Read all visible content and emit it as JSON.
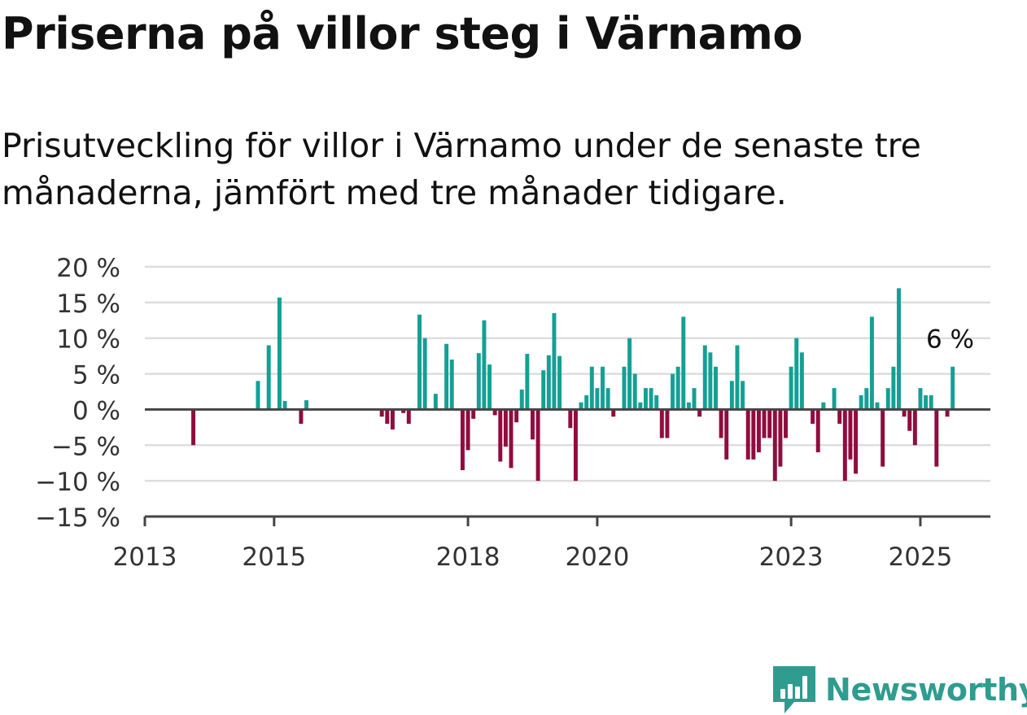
{
  "title": "Priserna på villor steg i Värnamo",
  "subtitle": "Prisutveckling för villor i Värnamo under de senaste tre månaderna, jämfört med tre månader tidigare.",
  "brand": {
    "name": "Newsworthy",
    "icon": "chart-speech-bubble-icon"
  },
  "colors": {
    "positive": "#14a094",
    "negative": "#900c3f",
    "grid": "#dddddd",
    "axis": "#444444"
  },
  "chart_data": {
    "type": "bar",
    "value_unit": "%",
    "ylim": [
      -15,
      20
    ],
    "yticks": [
      20,
      15,
      10,
      5,
      0,
      -5,
      -10,
      -15
    ],
    "ytick_labels": [
      "20 %",
      "15 %",
      "10 %",
      "5 %",
      "0 %",
      "−5 %",
      "−10 %",
      "−15 %"
    ],
    "xlim": [
      "2013-01",
      "2026-02"
    ],
    "xticks": [
      "2013-01",
      "2015-01",
      "2018-01",
      "2020-01",
      "2023-01",
      "2025-01"
    ],
    "xtick_labels": [
      "2013",
      "2015",
      "2018",
      "2020",
      "2023",
      "2025"
    ],
    "grid": true,
    "last_value_label": "6 %",
    "points": [
      {
        "x": "2013-10",
        "y": -5
      },
      {
        "x": "2014-10",
        "y": 4
      },
      {
        "x": "2014-12",
        "y": 9
      },
      {
        "x": "2015-02",
        "y": 15.7
      },
      {
        "x": "2015-03",
        "y": 1.2
      },
      {
        "x": "2015-06",
        "y": -2
      },
      {
        "x": "2015-07",
        "y": 1.3
      },
      {
        "x": "2016-09",
        "y": -1
      },
      {
        "x": "2016-10",
        "y": -2
      },
      {
        "x": "2016-11",
        "y": -2.8
      },
      {
        "x": "2017-01",
        "y": -0.5
      },
      {
        "x": "2017-02",
        "y": -2
      },
      {
        "x": "2017-04",
        "y": 13.3
      },
      {
        "x": "2017-05",
        "y": 10
      },
      {
        "x": "2017-07",
        "y": 2.2
      },
      {
        "x": "2017-09",
        "y": 9.2
      },
      {
        "x": "2017-10",
        "y": 7
      },
      {
        "x": "2017-12",
        "y": -8.5
      },
      {
        "x": "2018-01",
        "y": -5.7
      },
      {
        "x": "2018-02",
        "y": -1.3
      },
      {
        "x": "2018-03",
        "y": 7.9
      },
      {
        "x": "2018-04",
        "y": 12.5
      },
      {
        "x": "2018-05",
        "y": 6.3
      },
      {
        "x": "2018-06",
        "y": -0.8
      },
      {
        "x": "2018-07",
        "y": -7.3
      },
      {
        "x": "2018-08",
        "y": -5.2
      },
      {
        "x": "2018-09",
        "y": -8.2
      },
      {
        "x": "2018-10",
        "y": -1.8
      },
      {
        "x": "2018-11",
        "y": 2.8
      },
      {
        "x": "2018-12",
        "y": 7.8
      },
      {
        "x": "2019-01",
        "y": -4.2
      },
      {
        "x": "2019-02",
        "y": -10
      },
      {
        "x": "2019-03",
        "y": 5.5
      },
      {
        "x": "2019-04",
        "y": 7.6
      },
      {
        "x": "2019-05",
        "y": 13.5
      },
      {
        "x": "2019-06",
        "y": 7.5
      },
      {
        "x": "2019-08",
        "y": -2.6
      },
      {
        "x": "2019-09",
        "y": -10
      },
      {
        "x": "2019-10",
        "y": 1
      },
      {
        "x": "2019-11",
        "y": 2
      },
      {
        "x": "2019-12",
        "y": 6
      },
      {
        "x": "2020-01",
        "y": 3
      },
      {
        "x": "2020-02",
        "y": 6
      },
      {
        "x": "2020-03",
        "y": 3
      },
      {
        "x": "2020-04",
        "y": -1
      },
      {
        "x": "2020-06",
        "y": 6
      },
      {
        "x": "2020-07",
        "y": 10
      },
      {
        "x": "2020-08",
        "y": 5
      },
      {
        "x": "2020-09",
        "y": 1
      },
      {
        "x": "2020-10",
        "y": 3
      },
      {
        "x": "2020-11",
        "y": 3
      },
      {
        "x": "2020-12",
        "y": 2
      },
      {
        "x": "2021-01",
        "y": -4
      },
      {
        "x": "2021-02",
        "y": -4
      },
      {
        "x": "2021-03",
        "y": 5
      },
      {
        "x": "2021-04",
        "y": 6
      },
      {
        "x": "2021-05",
        "y": 13
      },
      {
        "x": "2021-06",
        "y": 1
      },
      {
        "x": "2021-07",
        "y": 3
      },
      {
        "x": "2021-08",
        "y": -1
      },
      {
        "x": "2021-09",
        "y": 9
      },
      {
        "x": "2021-10",
        "y": 8
      },
      {
        "x": "2021-11",
        "y": 6
      },
      {
        "x": "2021-12",
        "y": -4
      },
      {
        "x": "2022-01",
        "y": -7
      },
      {
        "x": "2022-02",
        "y": 4
      },
      {
        "x": "2022-03",
        "y": 9
      },
      {
        "x": "2022-04",
        "y": 4
      },
      {
        "x": "2022-05",
        "y": -7
      },
      {
        "x": "2022-06",
        "y": -7
      },
      {
        "x": "2022-07",
        "y": -6
      },
      {
        "x": "2022-08",
        "y": -4
      },
      {
        "x": "2022-09",
        "y": -4
      },
      {
        "x": "2022-10",
        "y": -10
      },
      {
        "x": "2022-11",
        "y": -8
      },
      {
        "x": "2022-12",
        "y": -4
      },
      {
        "x": "2023-01",
        "y": 6
      },
      {
        "x": "2023-02",
        "y": 10
      },
      {
        "x": "2023-03",
        "y": 8
      },
      {
        "x": "2023-05",
        "y": -2
      },
      {
        "x": "2023-06",
        "y": -6
      },
      {
        "x": "2023-07",
        "y": 1
      },
      {
        "x": "2023-09",
        "y": 3
      },
      {
        "x": "2023-10",
        "y": -2
      },
      {
        "x": "2023-11",
        "y": -10
      },
      {
        "x": "2023-12",
        "y": -7
      },
      {
        "x": "2024-01",
        "y": -9
      },
      {
        "x": "2024-02",
        "y": 2
      },
      {
        "x": "2024-03",
        "y": 3
      },
      {
        "x": "2024-04",
        "y": 13
      },
      {
        "x": "2024-05",
        "y": 1
      },
      {
        "x": "2024-06",
        "y": -8
      },
      {
        "x": "2024-07",
        "y": 3
      },
      {
        "x": "2024-08",
        "y": 6
      },
      {
        "x": "2024-09",
        "y": 17
      },
      {
        "x": "2024-10",
        "y": -1
      },
      {
        "x": "2024-11",
        "y": -3
      },
      {
        "x": "2024-12",
        "y": -5
      },
      {
        "x": "2025-01",
        "y": 3
      },
      {
        "x": "2025-02",
        "y": 2
      },
      {
        "x": "2025-03",
        "y": 2
      },
      {
        "x": "2025-04",
        "y": -8
      },
      {
        "x": "2025-06",
        "y": -1
      },
      {
        "x": "2025-07",
        "y": 6
      }
    ]
  }
}
